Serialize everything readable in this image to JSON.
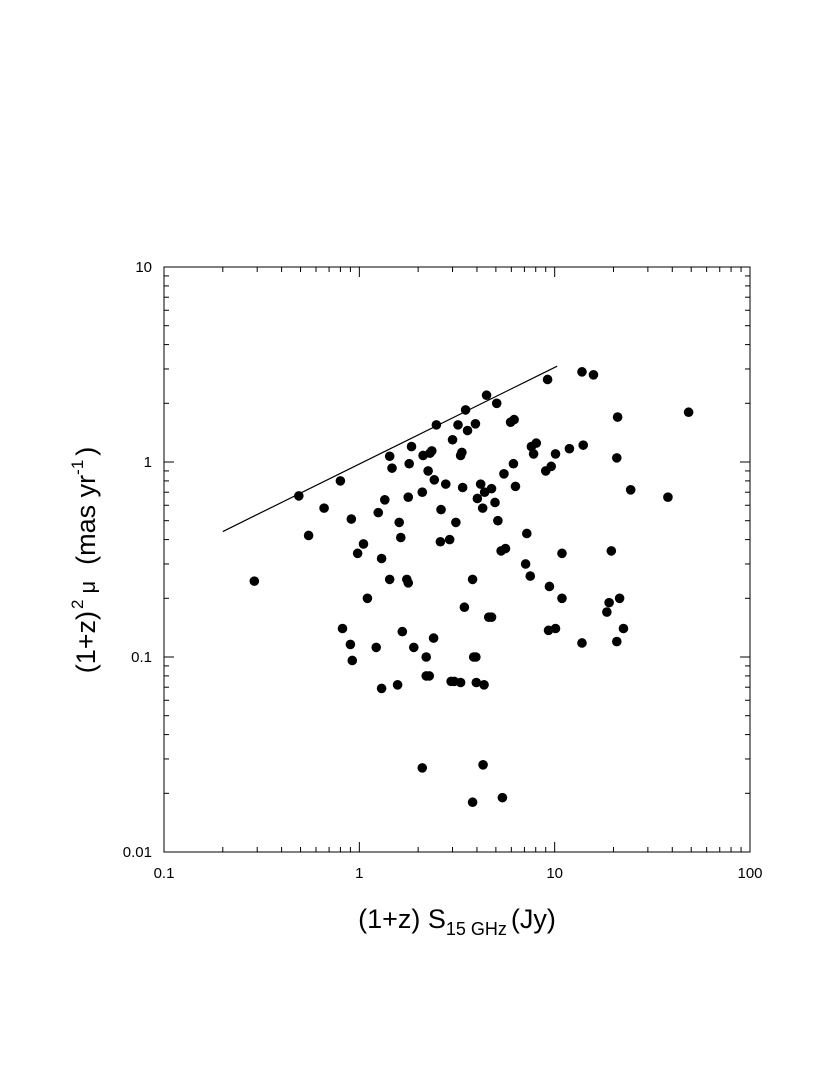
{
  "chart_data": {
    "type": "scatter",
    "title": "",
    "xscale": "log",
    "yscale": "log",
    "xlim": [
      0.1,
      100
    ],
    "ylim": [
      0.01,
      10
    ],
    "grid": false,
    "legend": "none",
    "x_tick_labels": [
      "0.1",
      "1",
      "10",
      "100"
    ],
    "y_tick_labels": [
      "0.01",
      "0.1",
      "1",
      "10"
    ],
    "xlabel": {
      "main": "(1+z) S",
      "subscript": "15 GHz",
      "suffix": "(Jy)"
    },
    "ylabel": {
      "prefix": "(1+z)",
      "exponent": "2",
      "symbol": "μ",
      "unit": "(mas yr",
      "unit_exponent": "-1",
      "unit_close": ")"
    },
    "line": {
      "x": [
        0.2,
        10.3
      ],
      "y": [
        0.44,
        3.1
      ]
    },
    "points": {
      "x": [
        0.29,
        0.49,
        0.55,
        0.66,
        0.8,
        0.91,
        0.98,
        1.1,
        1.25,
        1.35,
        1.43,
        1.47,
        1.6,
        1.63,
        1.75,
        1.78,
        1.8,
        1.85,
        2.1,
        2.12,
        2.25,
        2.3,
        2.35,
        2.42,
        2.48,
        2.6,
        2.62,
        2.77,
        2.9,
        3.0,
        3.12,
        3.2,
        3.3,
        3.35,
        3.38,
        3.5,
        3.58,
        3.8,
        3.93,
        4.02,
        4.18,
        4.28,
        4.38,
        4.48,
        4.6,
        4.75,
        4.95,
        5.05,
        5.12,
        5.32,
        5.5,
        5.6,
        5.95,
        6.15,
        6.3,
        7.1,
        7.5,
        7.6,
        7.8,
        8.05,
        9.0,
        9.2,
        9.6,
        10.1,
        10.9,
        11.9,
        13.8,
        14.0,
        15.8,
        20.8,
        21.0,
        24.5,
        38.0,
        48.5,
        6.2,
        7.2,
        9.4,
        10.9,
        19.5,
        19.0,
        18.5,
        21.5,
        20.8,
        22.5,
        13.8,
        10.1,
        9.3,
        1.3,
        1.43,
        1.78,
        2.4,
        3.45,
        3.85,
        3.97,
        4.35,
        4.75,
        1.05,
        0.82,
        0.9,
        0.92,
        1.22,
        1.3,
        1.57,
        1.66,
        1.9,
        2.2,
        2.28,
        2.2,
        2.95,
        3.06,
        3.3,
        3.95,
        2.1,
        4.3,
        3.8,
        5.4
      ],
      "y": [
        0.245,
        0.67,
        0.42,
        0.58,
        0.8,
        0.51,
        0.34,
        0.2,
        0.55,
        0.64,
        1.07,
        0.93,
        0.49,
        0.41,
        0.25,
        0.66,
        0.98,
        1.2,
        0.7,
        1.08,
        0.9,
        1.11,
        1.14,
        0.81,
        1.55,
        0.39,
        0.57,
        0.77,
        0.4,
        1.3,
        0.49,
        1.55,
        1.08,
        1.12,
        0.74,
        1.85,
        1.45,
        0.25,
        1.57,
        0.65,
        0.77,
        0.58,
        0.7,
        2.2,
        0.16,
        0.73,
        0.62,
        2.0,
        0.5,
        0.35,
        0.87,
        0.36,
        1.6,
        0.98,
        0.75,
        0.3,
        0.26,
        1.2,
        1.1,
        1.25,
        0.9,
        2.65,
        0.95,
        1.1,
        0.34,
        1.17,
        2.9,
        1.22,
        2.8,
        1.05,
        1.7,
        0.72,
        0.66,
        1.8,
        1.65,
        0.43,
        0.23,
        0.2,
        0.35,
        0.19,
        0.17,
        0.2,
        0.12,
        0.14,
        0.118,
        0.14,
        0.137,
        0.32,
        0.25,
        0.24,
        0.125,
        0.18,
        0.1,
        0.074,
        0.072,
        0.16,
        0.38,
        0.14,
        0.116,
        0.096,
        0.112,
        0.069,
        0.072,
        0.135,
        0.112,
        0.1,
        0.08,
        0.08,
        0.075,
        0.075,
        0.074,
        0.1,
        0.027,
        0.028,
        0.018,
        0.019
      ]
    }
  }
}
